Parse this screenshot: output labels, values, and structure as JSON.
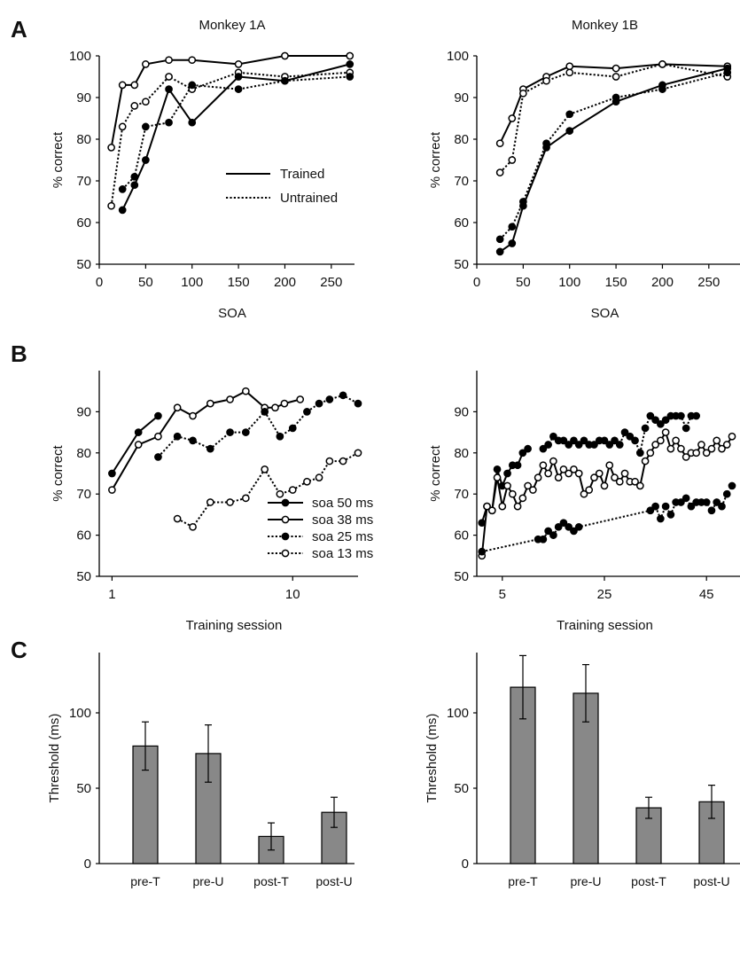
{
  "panel_letters": [
    "A",
    "B",
    "C"
  ],
  "chart_data": [
    {
      "id": "A_left",
      "type": "line",
      "title": "Monkey 1A",
      "xlabel": "SOA",
      "ylabel": "% correct",
      "xlim": [
        0,
        275
      ],
      "ylim": [
        50,
        100
      ],
      "xticks": [
        0,
        50,
        100,
        150,
        200,
        250
      ],
      "yticks": [
        50,
        60,
        70,
        80,
        90,
        100
      ],
      "legend_position": "center-right",
      "series": [
        {
          "name": "Trained",
          "style": "solid",
          "marker": "open",
          "x": [
            13,
            25,
            38,
            50,
            75,
            100,
            150,
            200,
            270
          ],
          "y": [
            78,
            93,
            93,
            98,
            99,
            99,
            98,
            100,
            100
          ]
        },
        {
          "name": "Untrained",
          "style": "dotted",
          "marker": "open",
          "x": [
            13,
            25,
            38,
            50,
            75,
            100,
            150,
            200,
            270
          ],
          "y": [
            64,
            83,
            88,
            89,
            95,
            92,
            96,
            95,
            96
          ]
        },
        {
          "style": "solid",
          "marker": "filled",
          "x": [
            25,
            38,
            50,
            75,
            100,
            150,
            200,
            270
          ],
          "y": [
            63,
            69,
            75,
            92,
            84,
            95,
            94,
            98
          ]
        },
        {
          "style": "dotted",
          "marker": "filled",
          "x": [
            25,
            38,
            50,
            75,
            100,
            150,
            200,
            270
          ],
          "y": [
            68,
            71,
            83,
            84,
            93,
            92,
            94,
            95
          ]
        }
      ]
    },
    {
      "id": "A_right",
      "type": "line",
      "title": "Monkey 1B",
      "xlabel": "SOA",
      "ylabel": "% correct",
      "xlim": [
        0,
        275
      ],
      "ylim": [
        50,
        100
      ],
      "xticks": [
        0,
        50,
        100,
        150,
        200,
        250
      ],
      "yticks": [
        50,
        60,
        70,
        80,
        90,
        100
      ],
      "series": [
        {
          "style": "solid",
          "marker": "open",
          "x": [
            25,
            38,
            50,
            75,
            100,
            150,
            200,
            270
          ],
          "y": [
            79,
            85,
            92,
            95,
            97.5,
            97,
            98,
            97.5
          ]
        },
        {
          "style": "dotted",
          "marker": "open",
          "x": [
            25,
            38,
            50,
            75,
            100,
            150,
            200,
            270
          ],
          "y": [
            72,
            75,
            91,
            94,
            96,
            95,
            98,
            95
          ]
        },
        {
          "style": "solid",
          "marker": "filled",
          "x": [
            25,
            38,
            50,
            75,
            100,
            150,
            200,
            270
          ],
          "y": [
            53,
            55,
            64,
            78,
            82,
            89,
            93,
            97
          ]
        },
        {
          "style": "dotted",
          "marker": "filled",
          "x": [
            25,
            38,
            50,
            75,
            100,
            150,
            200,
            270
          ],
          "y": [
            56,
            59,
            65,
            79,
            86,
            90,
            92,
            96
          ]
        }
      ]
    },
    {
      "id": "B_left",
      "type": "line",
      "xlabel": "Training session",
      "ylabel": "% correct",
      "xlim": [
        0.85,
        23
      ],
      "ylim": [
        50,
        100
      ],
      "xscale": "log",
      "xticks": [
        1,
        10
      ],
      "yticks": [
        50,
        60,
        70,
        80,
        90
      ],
      "legend_position": "center-right",
      "series": [
        {
          "name": "soa 50 ms",
          "style": "solid",
          "marker": "filled",
          "x": [
            1,
            1.4,
            1.8
          ],
          "y": [
            75,
            85,
            89
          ]
        },
        {
          "name": "soa 38 ms",
          "style": "solid",
          "marker": "open",
          "x": [
            1,
            1.4,
            1.8,
            2.3,
            2.8,
            3.5,
            4.5,
            5.5,
            7,
            8,
            9,
            11
          ],
          "y": [
            71,
            82,
            84,
            91,
            89,
            92,
            93,
            95,
            91,
            91,
            92,
            93
          ]
        },
        {
          "name": "soa 25 ms",
          "style": "dotted",
          "marker": "filled",
          "x": [
            1.8,
            2.3,
            2.8,
            3.5,
            4.5,
            5.5,
            7,
            8.5,
            10,
            12,
            14,
            16,
            19,
            23
          ],
          "y": [
            79,
            84,
            83,
            81,
            85,
            85,
            90,
            84,
            86,
            90,
            92,
            93,
            94,
            92
          ]
        },
        {
          "name": "soa 13 ms",
          "style": "dotted",
          "marker": "open",
          "x": [
            2.3,
            2.8,
            3.5,
            4.5,
            5.5,
            7,
            8.5,
            10,
            12,
            14,
            16,
            19,
            23
          ],
          "y": [
            64,
            62,
            68,
            68,
            69,
            76,
            70,
            71,
            73,
            74,
            78,
            78,
            80
          ]
        }
      ]
    },
    {
      "id": "B_right",
      "type": "line",
      "xlabel": "Training session",
      "ylabel": "% correct",
      "xlim": [
        0,
        50
      ],
      "ylim": [
        50,
        100
      ],
      "xticks": [
        5,
        25,
        45
      ],
      "yticks": [
        50,
        60,
        70,
        80,
        90
      ],
      "series": [
        {
          "style": "solid",
          "marker": "filled",
          "x": [
            1,
            2,
            3,
            4,
            5,
            6,
            7,
            8,
            9,
            10
          ],
          "y": [
            63,
            67,
            66,
            76,
            72,
            75,
            77,
            77,
            80,
            81
          ]
        },
        {
          "style": "dotted",
          "marker": "filled",
          "x": [
            13,
            14,
            15,
            16,
            17,
            18,
            19,
            20,
            21,
            22,
            23,
            24,
            25,
            26,
            27,
            28,
            29,
            30,
            31,
            32,
            33,
            34,
            35,
            36,
            37,
            38,
            39,
            40,
            41,
            42,
            43
          ],
          "y": [
            81,
            82,
            84,
            83,
            83,
            82,
            83,
            82,
            83,
            82,
            82,
            83,
            83,
            82,
            83,
            82,
            85,
            84,
            83,
            80,
            86,
            89,
            88,
            87,
            88,
            89,
            89,
            89,
            86,
            89,
            89
          ]
        },
        {
          "style": "solid",
          "marker": "open",
          "x": [
            1,
            2,
            3,
            4,
            5,
            6,
            7,
            8,
            9,
            10,
            11,
            12,
            13,
            14,
            15,
            16,
            17,
            18,
            19,
            20,
            21,
            22,
            23,
            24,
            25,
            26,
            27,
            28,
            29,
            30,
            31,
            32,
            33,
            34,
            35,
            36,
            37,
            38,
            39,
            40,
            41,
            42,
            43,
            44,
            45,
            46,
            47,
            48,
            49,
            50
          ],
          "y": [
            55,
            67,
            66,
            74,
            67,
            72,
            70,
            67,
            69,
            72,
            71,
            74,
            77,
            75,
            78,
            74,
            76,
            75,
            76,
            75,
            70,
            71,
            74,
            75,
            72,
            77,
            74,
            73,
            75,
            73,
            73,
            72,
            78,
            80,
            82,
            83,
            85,
            81,
            83,
            81,
            79,
            80,
            80,
            82,
            80,
            81,
            83,
            81,
            82,
            84
          ]
        },
        {
          "style": "dotted",
          "marker": "filled",
          "x": [
            1,
            12,
            13,
            14,
            15,
            16,
            17,
            18,
            19,
            20,
            34,
            35,
            36,
            37,
            38,
            39,
            40,
            41,
            42,
            43,
            44,
            45,
            46,
            47,
            48,
            49,
            50
          ],
          "y": [
            56,
            59,
            59,
            61,
            60,
            62,
            63,
            62,
            61,
            62,
            66,
            67,
            64,
            67,
            65,
            68,
            68,
            69,
            67,
            68,
            68,
            68,
            66,
            68,
            67,
            70,
            72
          ]
        }
      ]
    },
    {
      "id": "C_left",
      "type": "bar",
      "ylabel": "Threshold (ms)",
      "ylim": [
        0,
        140
      ],
      "yticks": [
        0,
        50,
        100
      ],
      "categories": [
        "pre-T",
        "pre-U",
        "post-T",
        "post-U"
      ],
      "values": [
        78,
        73,
        18,
        34
      ],
      "errors": [
        16,
        19,
        9,
        10
      ]
    },
    {
      "id": "C_right",
      "type": "bar",
      "ylabel": "Threshold (ms)",
      "ylim": [
        0,
        140
      ],
      "yticks": [
        0,
        50,
        100
      ],
      "categories": [
        "pre-T",
        "pre-U",
        "post-T",
        "post-U"
      ],
      "values": [
        117,
        113,
        37,
        41
      ],
      "errors": [
        21,
        19,
        7,
        11
      ]
    }
  ]
}
